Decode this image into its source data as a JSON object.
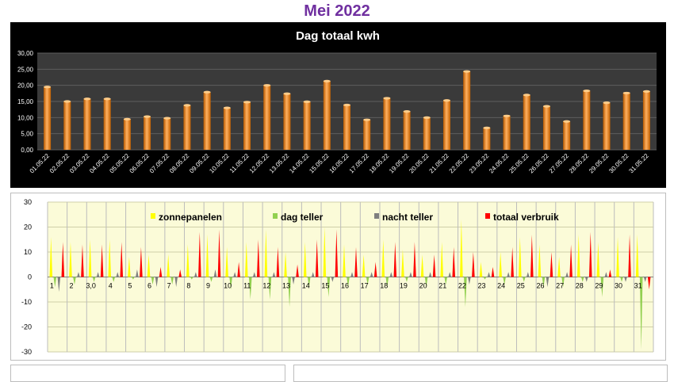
{
  "page": {
    "title": "Mei 2022"
  },
  "colors": {
    "title": "#7030a0",
    "bar_fill": "#f28a1e",
    "chart1_background": "#000000",
    "chart1_plot": "#3a3a3a",
    "chart2_plot": "#fbfbd8",
    "zonnepanelen": "#ffff00",
    "dag_teller": "#92d050",
    "nacht_teller": "#7f7f7f",
    "totaal_verbruik": "#ff0000"
  },
  "chart_data": [
    {
      "type": "bar",
      "title": "Dag totaal kwh",
      "categories": [
        "01.05.22",
        "02.05.22",
        "03.05.22",
        "04.05.22",
        "05.05.22",
        "06.05.22",
        "07.05.22",
        "08.05.22",
        "09.05.22",
        "10.05.22",
        "11.05.22",
        "12.05.22",
        "13.05.22",
        "14.05.22",
        "15.05.22",
        "16.05.22",
        "17.05.22",
        "18.05.22",
        "19.05.22",
        "20.05.22",
        "21.05.22",
        "22.05.22",
        "23.05.22",
        "24.05.22",
        "25.05.22",
        "26.05.22",
        "27.05.22",
        "28.05.22",
        "29.05.22",
        "30.05.22",
        "31.05.22"
      ],
      "values": [
        19.5,
        15.0,
        15.8,
        15.8,
        9.5,
        10.3,
        9.8,
        13.8,
        17.9,
        13.0,
        14.8,
        20.0,
        17.4,
        14.9,
        21.3,
        13.9,
        9.3,
        16.0,
        11.9,
        10.0,
        15.3,
        24.3,
        6.8,
        10.5,
        17.0,
        13.5,
        8.8,
        18.3,
        14.6,
        17.6,
        18.1
      ],
      "ylim": [
        0,
        30
      ],
      "yticks": [
        "0,00",
        "5,00",
        "10,00",
        "15,00",
        "20,00",
        "25,00",
        "30,00"
      ],
      "grid": true
    },
    {
      "type": "area",
      "categories": [
        "1",
        "2",
        "3,0",
        "4",
        "5",
        "6",
        "7",
        "8",
        "9",
        "10",
        "11",
        "12",
        "13",
        "14",
        "15",
        "16",
        "17",
        "18",
        "19",
        "20",
        "21",
        "22",
        "23",
        "24",
        "25",
        "26",
        "27",
        "28",
        "29",
        "30",
        "31"
      ],
      "ylim": [
        -30,
        30
      ],
      "yticks": [
        "-30",
        "-20",
        "-10",
        "0",
        "10",
        "20",
        "30"
      ],
      "grid": true,
      "legend_position": "top",
      "series": [
        {
          "name": "zonnepanelen",
          "values": [
            16,
            14,
            15,
            15,
            8,
            9,
            9,
            13,
            17,
            12,
            14,
            19,
            10,
            14,
            20,
            13,
            9,
            15,
            11,
            9,
            14,
            23,
            6,
            10,
            16,
            13,
            8,
            17,
            14,
            16,
            17
          ]
        },
        {
          "name": "dag teller",
          "values": [
            -4,
            -3,
            -2,
            -2,
            -1,
            -3,
            -3,
            -1,
            -2,
            -5,
            -9,
            -9,
            -12,
            -4,
            -8,
            -4,
            -3,
            -4,
            -2,
            -4,
            -3,
            -12,
            -1,
            -3,
            -2,
            -4,
            -4,
            -2,
            -8,
            -2,
            -29
          ]
        },
        {
          "name": "nacht teller",
          "values": [
            -6,
            2,
            2,
            2,
            3,
            -4,
            -4,
            2,
            3,
            2,
            2,
            2,
            -3,
            2,
            -2,
            2,
            2,
            2,
            2,
            2,
            2,
            -3,
            2,
            2,
            2,
            -4,
            2,
            -2,
            2,
            -2,
            -2
          ]
        },
        {
          "name": "totaal verbruik",
          "values": [
            14,
            13,
            13,
            14,
            12,
            4,
            3,
            18,
            19,
            6,
            15,
            12,
            5,
            15,
            19,
            12,
            6,
            14,
            14,
            9,
            12,
            10,
            4,
            12,
            17,
            10,
            13,
            18,
            3,
            17,
            -5
          ]
        }
      ]
    }
  ]
}
